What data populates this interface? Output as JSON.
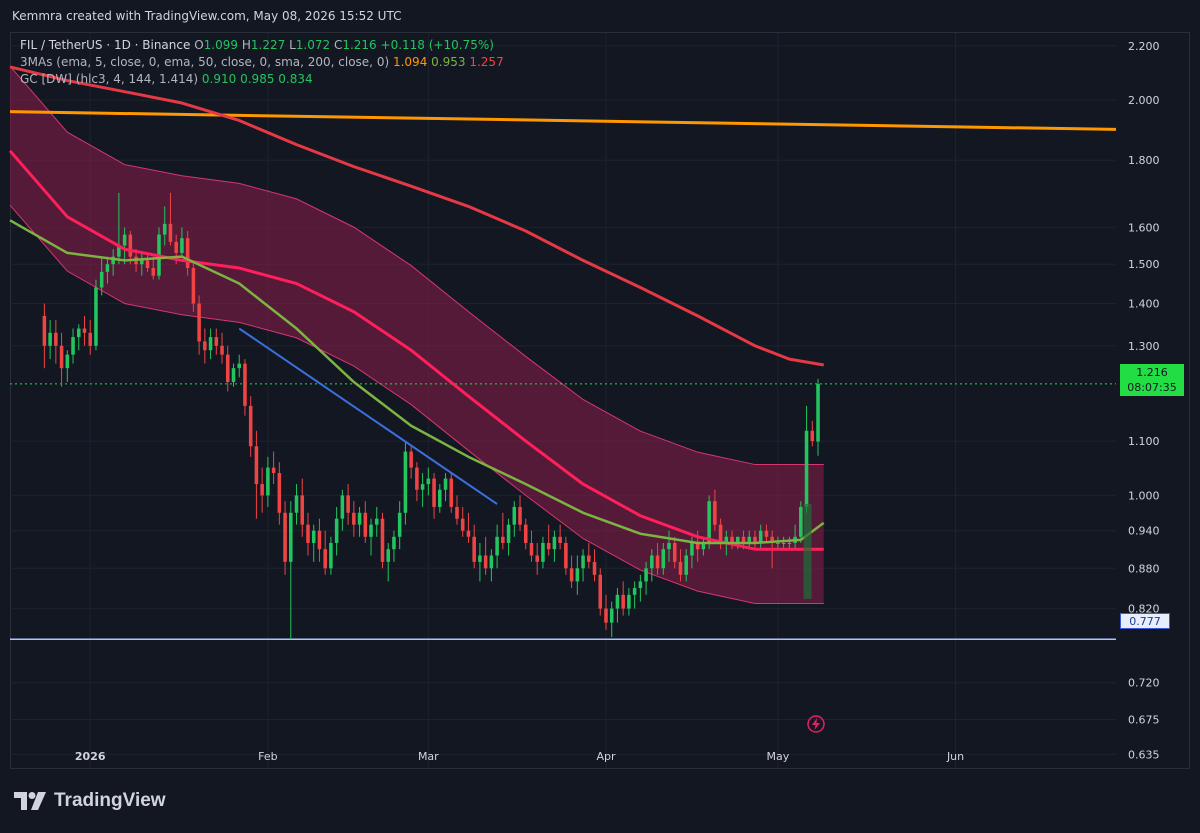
{
  "header": {
    "caption": "Kemmra created with TradingView.com, May 08, 2026 15:52 UTC"
  },
  "legend": {
    "symbol": "FIL / TetherUS · 1D · Binance",
    "o_label": "O",
    "o": "1.099",
    "h_label": "H",
    "h": "1.227",
    "l_label": "L",
    "l": "1.072",
    "c_label": "C",
    "c": "1.216",
    "chg": "+0.118 (+10.75%)",
    "mas_label": "3MAs (ema, 5, close, 0, ema, 50, close, 0, sma, 200, close, 0)",
    "ma1": "1.094",
    "ma2": "0.953",
    "ma3": "1.257",
    "gc_label": "GC [DW] (hlc3, 4, 144, 1.414)",
    "gc1": "0.910",
    "gc2": "0.985",
    "gc3": "0.834"
  },
  "price_tag": {
    "price": "1.216",
    "countdown": "08:07:35"
  },
  "low_tag": {
    "price": "0.777"
  },
  "brand": {
    "name": "TradingView"
  },
  "colors": {
    "background": "#131722",
    "up": "#22c55e",
    "down": "#ef4444",
    "ema50": "#7cb342",
    "sma200": "#e53945",
    "band_center": "#ff1f5a",
    "band_fill": "#8b1e4a",
    "orange_line": "#ff9800",
    "trend_line": "#3b6fe0",
    "support_line": "#aac4ff"
  },
  "chart_data": {
    "type": "candlestick",
    "symbol": "FIL / TetherUS",
    "timeframe": "1D",
    "exchange": "Binance",
    "y_scale": "log",
    "ylim": [
      0.62,
      2.25
    ],
    "y_ticks": [
      "2.200",
      "2.000",
      "1.800",
      "1.600",
      "1.500",
      "1.400",
      "1.300",
      "1.100",
      "1.000",
      "0.940",
      "0.880",
      "0.820",
      "0.720",
      "0.675",
      "0.635"
    ],
    "x_ticks": [
      "2026",
      "Feb",
      "Mar",
      "Apr",
      "May",
      "Jun"
    ],
    "xlim": [
      "2025-12-18",
      "2026-06-29"
    ],
    "last_price": 1.216,
    "horizontal_lines": [
      {
        "price": 1.216,
        "style": "dotted",
        "color": "#22dd44"
      },
      {
        "price": 0.777,
        "style": "solid",
        "color": "#aac4ff"
      }
    ],
    "orange_line": [
      {
        "date": "2025-12-18",
        "price": 1.96
      },
      {
        "date": "2026-06-29",
        "price": 1.9
      }
    ],
    "trend_line": [
      {
        "date": "2026-01-27",
        "price": 1.34
      },
      {
        "date": "2026-03-13",
        "price": 0.985
      }
    ],
    "sma200": [
      [
        "2025-12-18",
        2.12
      ],
      [
        "2025-12-28",
        2.07
      ],
      [
        "2026-01-07",
        2.03
      ],
      [
        "2026-01-17",
        1.99
      ],
      [
        "2026-01-27",
        1.93
      ],
      [
        "2026-02-06",
        1.85
      ],
      [
        "2026-02-16",
        1.78
      ],
      [
        "2026-02-26",
        1.72
      ],
      [
        "2026-03-08",
        1.66
      ],
      [
        "2026-03-18",
        1.59
      ],
      [
        "2026-03-28",
        1.51
      ],
      [
        "2026-04-07",
        1.44
      ],
      [
        "2026-04-17",
        1.37
      ],
      [
        "2026-04-27",
        1.3
      ],
      [
        "2026-05-03",
        1.27
      ],
      [
        "2026-05-09",
        1.257
      ]
    ],
    "ema50": [
      [
        "2025-12-18",
        1.62
      ],
      [
        "2025-12-28",
        1.53
      ],
      [
        "2026-01-07",
        1.51
      ],
      [
        "2026-01-17",
        1.52
      ],
      [
        "2026-01-27",
        1.45
      ],
      [
        "2026-02-06",
        1.34
      ],
      [
        "2026-02-16",
        1.22
      ],
      [
        "2026-02-26",
        1.13
      ],
      [
        "2026-03-08",
        1.07
      ],
      [
        "2026-03-18",
        1.02
      ],
      [
        "2026-03-28",
        0.97
      ],
      [
        "2026-04-07",
        0.935
      ],
      [
        "2026-04-17",
        0.92
      ],
      [
        "2026-04-27",
        0.92
      ],
      [
        "2026-05-05",
        0.925
      ],
      [
        "2026-05-09",
        0.953
      ]
    ],
    "gc_center": [
      [
        "2025-12-18",
        1.83
      ],
      [
        "2025-12-28",
        1.63
      ],
      [
        "2026-01-07",
        1.54
      ],
      [
        "2026-01-17",
        1.51
      ],
      [
        "2026-01-27",
        1.49
      ],
      [
        "2026-02-06",
        1.45
      ],
      [
        "2026-02-16",
        1.38
      ],
      [
        "2026-02-26",
        1.29
      ],
      [
        "2026-03-08",
        1.19
      ],
      [
        "2026-03-18",
        1.1
      ],
      [
        "2026-03-28",
        1.02
      ],
      [
        "2026-04-07",
        0.965
      ],
      [
        "2026-04-17",
        0.93
      ],
      [
        "2026-04-27",
        0.91
      ],
      [
        "2026-05-09",
        0.91
      ]
    ],
    "candles_ohlc": [
      [
        1.37,
        1.4,
        1.25,
        1.3
      ],
      [
        1.3,
        1.36,
        1.27,
        1.33
      ],
      [
        1.33,
        1.36,
        1.26,
        1.3
      ],
      [
        1.3,
        1.33,
        1.21,
        1.25
      ],
      [
        1.25,
        1.29,
        1.22,
        1.28
      ],
      [
        1.28,
        1.34,
        1.26,
        1.32
      ],
      [
        1.32,
        1.35,
        1.29,
        1.34
      ],
      [
        1.34,
        1.37,
        1.3,
        1.33
      ],
      [
        1.33,
        1.36,
        1.28,
        1.3
      ],
      [
        1.3,
        1.46,
        1.29,
        1.44
      ],
      [
        1.44,
        1.52,
        1.42,
        1.48
      ],
      [
        1.48,
        1.52,
        1.45,
        1.5
      ],
      [
        1.5,
        1.54,
        1.47,
        1.52
      ],
      [
        1.52,
        1.7,
        1.5,
        1.55
      ],
      [
        1.55,
        1.6,
        1.5,
        1.58
      ],
      [
        1.58,
        1.59,
        1.5,
        1.52
      ],
      [
        1.52,
        1.54,
        1.48,
        1.5
      ],
      [
        1.5,
        1.53,
        1.47,
        1.51
      ],
      [
        1.51,
        1.53,
        1.48,
        1.49
      ],
      [
        1.49,
        1.52,
        1.46,
        1.47
      ],
      [
        1.47,
        1.6,
        1.46,
        1.58
      ],
      [
        1.58,
        1.66,
        1.55,
        1.61
      ],
      [
        1.61,
        1.7,
        1.55,
        1.56
      ],
      [
        1.56,
        1.58,
        1.5,
        1.53
      ],
      [
        1.53,
        1.6,
        1.52,
        1.57
      ],
      [
        1.57,
        1.59,
        1.47,
        1.49
      ],
      [
        1.49,
        1.51,
        1.38,
        1.4
      ],
      [
        1.4,
        1.42,
        1.28,
        1.31
      ],
      [
        1.31,
        1.34,
        1.26,
        1.29
      ],
      [
        1.29,
        1.34,
        1.27,
        1.32
      ],
      [
        1.32,
        1.34,
        1.28,
        1.3
      ],
      [
        1.3,
        1.33,
        1.26,
        1.28
      ],
      [
        1.28,
        1.3,
        1.2,
        1.22
      ],
      [
        1.22,
        1.26,
        1.21,
        1.25
      ],
      [
        1.25,
        1.28,
        1.23,
        1.26
      ],
      [
        1.26,
        1.27,
        1.15,
        1.17
      ],
      [
        1.17,
        1.19,
        1.07,
        1.09
      ],
      [
        1.09,
        1.12,
        0.96,
        1.02
      ],
      [
        1.02,
        1.05,
        0.97,
        1.0
      ],
      [
        1.0,
        1.07,
        0.98,
        1.05
      ],
      [
        1.05,
        1.08,
        1.02,
        1.04
      ],
      [
        1.04,
        1.06,
        0.95,
        0.97
      ],
      [
        0.97,
        0.99,
        0.87,
        0.89
      ],
      [
        0.89,
        0.99,
        0.777,
        0.97
      ],
      [
        0.97,
        1.02,
        0.95,
        1.0
      ],
      [
        1.0,
        1.03,
        0.93,
        0.95
      ],
      [
        0.95,
        0.97,
        0.9,
        0.92
      ],
      [
        0.92,
        0.95,
        0.89,
        0.94
      ],
      [
        0.94,
        0.96,
        0.89,
        0.91
      ],
      [
        0.91,
        0.94,
        0.87,
        0.88
      ],
      [
        0.88,
        0.93,
        0.87,
        0.92
      ],
      [
        0.92,
        0.98,
        0.9,
        0.96
      ],
      [
        0.96,
        1.01,
        0.94,
        1.0
      ],
      [
        1.0,
        1.02,
        0.95,
        0.97
      ],
      [
        0.97,
        0.99,
        0.93,
        0.95
      ],
      [
        0.95,
        0.98,
        0.93,
        0.97
      ],
      [
        0.97,
        0.99,
        0.92,
        0.93
      ],
      [
        0.93,
        0.96,
        0.9,
        0.95
      ],
      [
        0.95,
        0.98,
        0.93,
        0.96
      ],
      [
        0.96,
        0.97,
        0.88,
        0.89
      ],
      [
        0.89,
        0.92,
        0.86,
        0.91
      ],
      [
        0.91,
        0.94,
        0.89,
        0.93
      ],
      [
        0.93,
        0.99,
        0.91,
        0.97
      ],
      [
        0.97,
        1.1,
        0.95,
        1.08
      ],
      [
        1.08,
        1.09,
        1.03,
        1.05
      ],
      [
        1.05,
        1.06,
        0.99,
        1.01
      ],
      [
        1.01,
        1.04,
        0.98,
        1.02
      ],
      [
        1.02,
        1.05,
        1.0,
        1.03
      ],
      [
        1.03,
        1.04,
        0.96,
        0.98
      ],
      [
        0.98,
        1.02,
        0.97,
        1.01
      ],
      [
        1.01,
        1.04,
        0.99,
        1.03
      ],
      [
        1.03,
        1.04,
        0.97,
        0.98
      ],
      [
        0.98,
        1.0,
        0.95,
        0.96
      ],
      [
        0.96,
        0.98,
        0.93,
        0.94
      ],
      [
        0.94,
        0.97,
        0.92,
        0.93
      ],
      [
        0.93,
        0.95,
        0.88,
        0.89
      ],
      [
        0.89,
        0.92,
        0.86,
        0.9
      ],
      [
        0.9,
        0.93,
        0.87,
        0.88
      ],
      [
        0.88,
        0.91,
        0.86,
        0.9
      ],
      [
        0.9,
        0.95,
        0.88,
        0.93
      ],
      [
        0.93,
        0.97,
        0.91,
        0.92
      ],
      [
        0.92,
        0.96,
        0.9,
        0.95
      ],
      [
        0.95,
        0.99,
        0.93,
        0.98
      ],
      [
        0.98,
        1.0,
        0.94,
        0.95
      ],
      [
        0.95,
        0.96,
        0.91,
        0.92
      ],
      [
        0.92,
        0.94,
        0.89,
        0.9
      ],
      [
        0.9,
        0.92,
        0.87,
        0.89
      ],
      [
        0.89,
        0.93,
        0.88,
        0.92
      ],
      [
        0.92,
        0.95,
        0.9,
        0.91
      ],
      [
        0.91,
        0.94,
        0.89,
        0.93
      ],
      [
        0.93,
        0.95,
        0.91,
        0.92
      ],
      [
        0.92,
        0.93,
        0.87,
        0.88
      ],
      [
        0.88,
        0.9,
        0.85,
        0.86
      ],
      [
        0.86,
        0.9,
        0.84,
        0.88
      ],
      [
        0.88,
        0.91,
        0.86,
        0.9
      ],
      [
        0.9,
        0.92,
        0.88,
        0.89
      ],
      [
        0.89,
        0.91,
        0.86,
        0.87
      ],
      [
        0.87,
        0.88,
        0.81,
        0.82
      ],
      [
        0.82,
        0.84,
        0.79,
        0.8
      ],
      [
        0.8,
        0.83,
        0.78,
        0.82
      ],
      [
        0.82,
        0.85,
        0.8,
        0.84
      ],
      [
        0.84,
        0.86,
        0.81,
        0.82
      ],
      [
        0.82,
        0.85,
        0.81,
        0.84
      ],
      [
        0.84,
        0.86,
        0.82,
        0.85
      ],
      [
        0.85,
        0.87,
        0.83,
        0.86
      ],
      [
        0.86,
        0.89,
        0.84,
        0.88
      ],
      [
        0.88,
        0.91,
        0.86,
        0.9
      ],
      [
        0.9,
        0.92,
        0.87,
        0.88
      ],
      [
        0.88,
        0.92,
        0.87,
        0.91
      ],
      [
        0.91,
        0.94,
        0.89,
        0.92
      ],
      [
        0.92,
        0.93,
        0.88,
        0.89
      ],
      [
        0.89,
        0.91,
        0.86,
        0.87
      ],
      [
        0.87,
        0.91,
        0.86,
        0.9
      ],
      [
        0.9,
        0.93,
        0.88,
        0.92
      ],
      [
        0.92,
        0.94,
        0.89,
        0.91
      ],
      [
        0.91,
        0.93,
        0.9,
        0.92
      ],
      [
        0.92,
        1.0,
        0.91,
        0.99
      ],
      [
        0.99,
        1.01,
        0.94,
        0.95
      ],
      [
        0.95,
        0.96,
        0.91,
        0.92
      ],
      [
        0.92,
        0.94,
        0.9,
        0.93
      ],
      [
        0.93,
        0.94,
        0.91,
        0.92
      ],
      [
        0.92,
        0.93,
        0.91,
        0.93
      ],
      [
        0.93,
        0.94,
        0.91,
        0.92
      ],
      [
        0.92,
        0.94,
        0.91,
        0.93
      ],
      [
        0.93,
        0.94,
        0.91,
        0.92
      ],
      [
        0.92,
        0.95,
        0.91,
        0.94
      ],
      [
        0.94,
        0.95,
        0.92,
        0.93
      ],
      [
        0.93,
        0.94,
        0.88,
        0.92
      ],
      [
        0.92,
        0.93,
        0.91,
        0.92
      ],
      [
        0.92,
        0.93,
        0.91,
        0.92
      ],
      [
        0.92,
        0.93,
        0.91,
        0.92
      ],
      [
        0.92,
        0.95,
        0.91,
        0.93
      ],
      [
        0.93,
        0.99,
        0.92,
        0.98
      ],
      [
        0.98,
        1.17,
        0.97,
        1.12
      ],
      [
        1.12,
        1.14,
        1.09,
        1.1
      ],
      [
        1.099,
        1.227,
        1.072,
        1.216
      ]
    ]
  }
}
